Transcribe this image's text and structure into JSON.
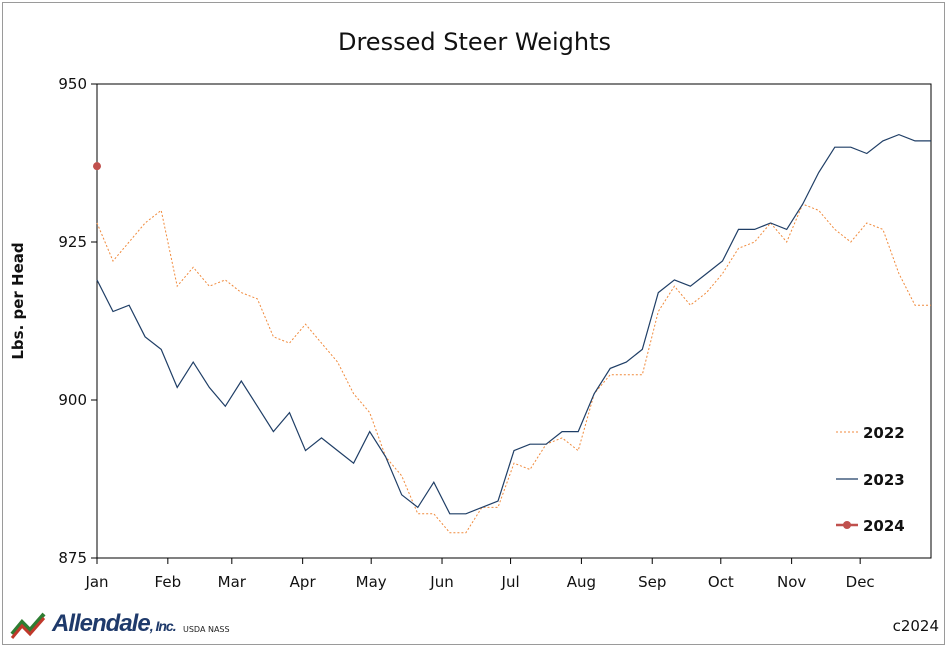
{
  "chart_data": {
    "type": "line",
    "title": "Dressed Steer Weights",
    "xlabel": "",
    "ylabel": "Lbs. per Head",
    "ylim": [
      875,
      950
    ],
    "yticks": [
      875,
      900,
      925,
      950
    ],
    "xticks": [
      "Jan",
      "Feb",
      "Mar",
      "Apr",
      "May",
      "Jun",
      "Jul",
      "Aug",
      "Sep",
      "Oct",
      "Nov",
      "Dec"
    ],
    "x_weeks": 53,
    "grid": false,
    "legend_position": "right",
    "series": [
      {
        "name": "2022",
        "color": "#f08a3c",
        "style": "dashed",
        "values": [
          928,
          922,
          925,
          928,
          930,
          918,
          921,
          918,
          919,
          917,
          916,
          910,
          909,
          912,
          909,
          906,
          901,
          898,
          891,
          888,
          882,
          882,
          879,
          879,
          883,
          883,
          890,
          889,
          893,
          894,
          892,
          901,
          904,
          904,
          904,
          914,
          918,
          915,
          917,
          920,
          924,
          925,
          928,
          925,
          931,
          930,
          927,
          925,
          928,
          927,
          920,
          915,
          915
        ]
      },
      {
        "name": "2023",
        "color": "#1f3e66",
        "style": "solid",
        "values": [
          919,
          914,
          915,
          910,
          908,
          902,
          906,
          902,
          899,
          903,
          899,
          895,
          898,
          892,
          894,
          892,
          890,
          895,
          891,
          885,
          883,
          887,
          882,
          882,
          883,
          884,
          892,
          893,
          893,
          895,
          895,
          901,
          905,
          906,
          908,
          917,
          919,
          918,
          920,
          922,
          927,
          927,
          928,
          927,
          931,
          936,
          940,
          940,
          939,
          941,
          942,
          941,
          941
        ]
      },
      {
        "name": "2024",
        "color": "#c0504d",
        "style": "marker",
        "values": [
          937
        ]
      }
    ]
  },
  "footer": {
    "logo_name": "Allendale",
    "logo_suffix": ", Inc.",
    "source": "USDA NASS",
    "copyright": "c2024"
  }
}
